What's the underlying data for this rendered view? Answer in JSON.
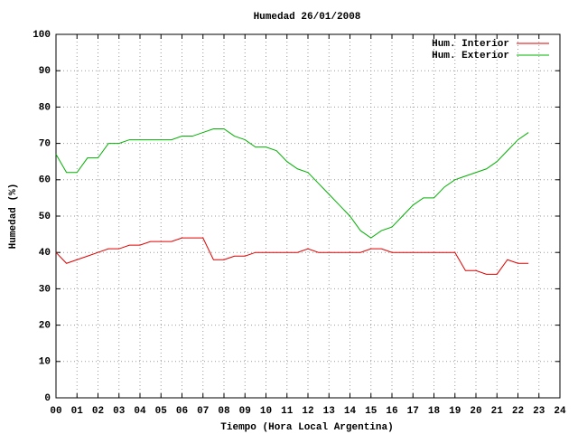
{
  "chart_data": {
    "type": "line",
    "title": "Humedad 26/01/2008",
    "xlabel": "Tiempo (Hora Local Argentina)",
    "ylabel": "Humedad (%)",
    "x": [
      0,
      0.5,
      1,
      1.5,
      2,
      2.5,
      3,
      3.5,
      4,
      4.5,
      5,
      5.5,
      6,
      6.5,
      7,
      7.5,
      8,
      8.5,
      9,
      9.5,
      10,
      10.5,
      11,
      11.5,
      12,
      12.5,
      13,
      13.5,
      14,
      14.5,
      15,
      15.5,
      16,
      16.5,
      17,
      17.5,
      18,
      18.5,
      19,
      19.5,
      20,
      20.5,
      21,
      21.5,
      22,
      22.5
    ],
    "series": [
      {
        "name": "Hum. Interior",
        "color": "#e00000",
        "values": [
          40,
          37,
          38,
          39,
          40,
          41,
          41,
          42,
          42,
          43,
          43,
          43,
          44,
          44,
          44,
          38,
          38,
          39,
          39,
          40,
          40,
          40,
          40,
          40,
          41,
          40,
          40,
          40,
          40,
          40,
          41,
          41,
          40,
          40,
          40,
          40,
          40,
          40,
          40,
          35,
          35,
          34,
          34,
          38,
          37,
          37
        ]
      },
      {
        "name": "Hum. Exterior",
        "color": "#00b000",
        "values": [
          67,
          62,
          62,
          66,
          66,
          70,
          70,
          71,
          71,
          71,
          71,
          71,
          72,
          72,
          73,
          74,
          74,
          72,
          71,
          69,
          69,
          68,
          65,
          63,
          62,
          59,
          56,
          53,
          50,
          46,
          44,
          46,
          47,
          50,
          53,
          55,
          55,
          58,
          60,
          61,
          62,
          63,
          65,
          68,
          71,
          73
        ]
      }
    ],
    "xlim": [
      0,
      24
    ],
    "xticks": [
      {
        "value": 0,
        "label": "00"
      },
      {
        "value": 1,
        "label": "01"
      },
      {
        "value": 2,
        "label": "02"
      },
      {
        "value": 3,
        "label": "03"
      },
      {
        "value": 4,
        "label": "04"
      },
      {
        "value": 5,
        "label": "05"
      },
      {
        "value": 6,
        "label": "06"
      },
      {
        "value": 7,
        "label": "07"
      },
      {
        "value": 8,
        "label": "08"
      },
      {
        "value": 9,
        "label": "09"
      },
      10,
      11,
      12,
      13,
      14,
      15,
      16,
      17,
      18,
      19,
      20,
      21,
      22,
      23,
      24
    ],
    "ylim": [
      0,
      100
    ],
    "yticks": [
      0,
      10,
      20,
      30,
      40,
      50,
      60,
      70,
      80,
      90,
      100
    ],
    "grid": true,
    "legend": "top-right"
  }
}
